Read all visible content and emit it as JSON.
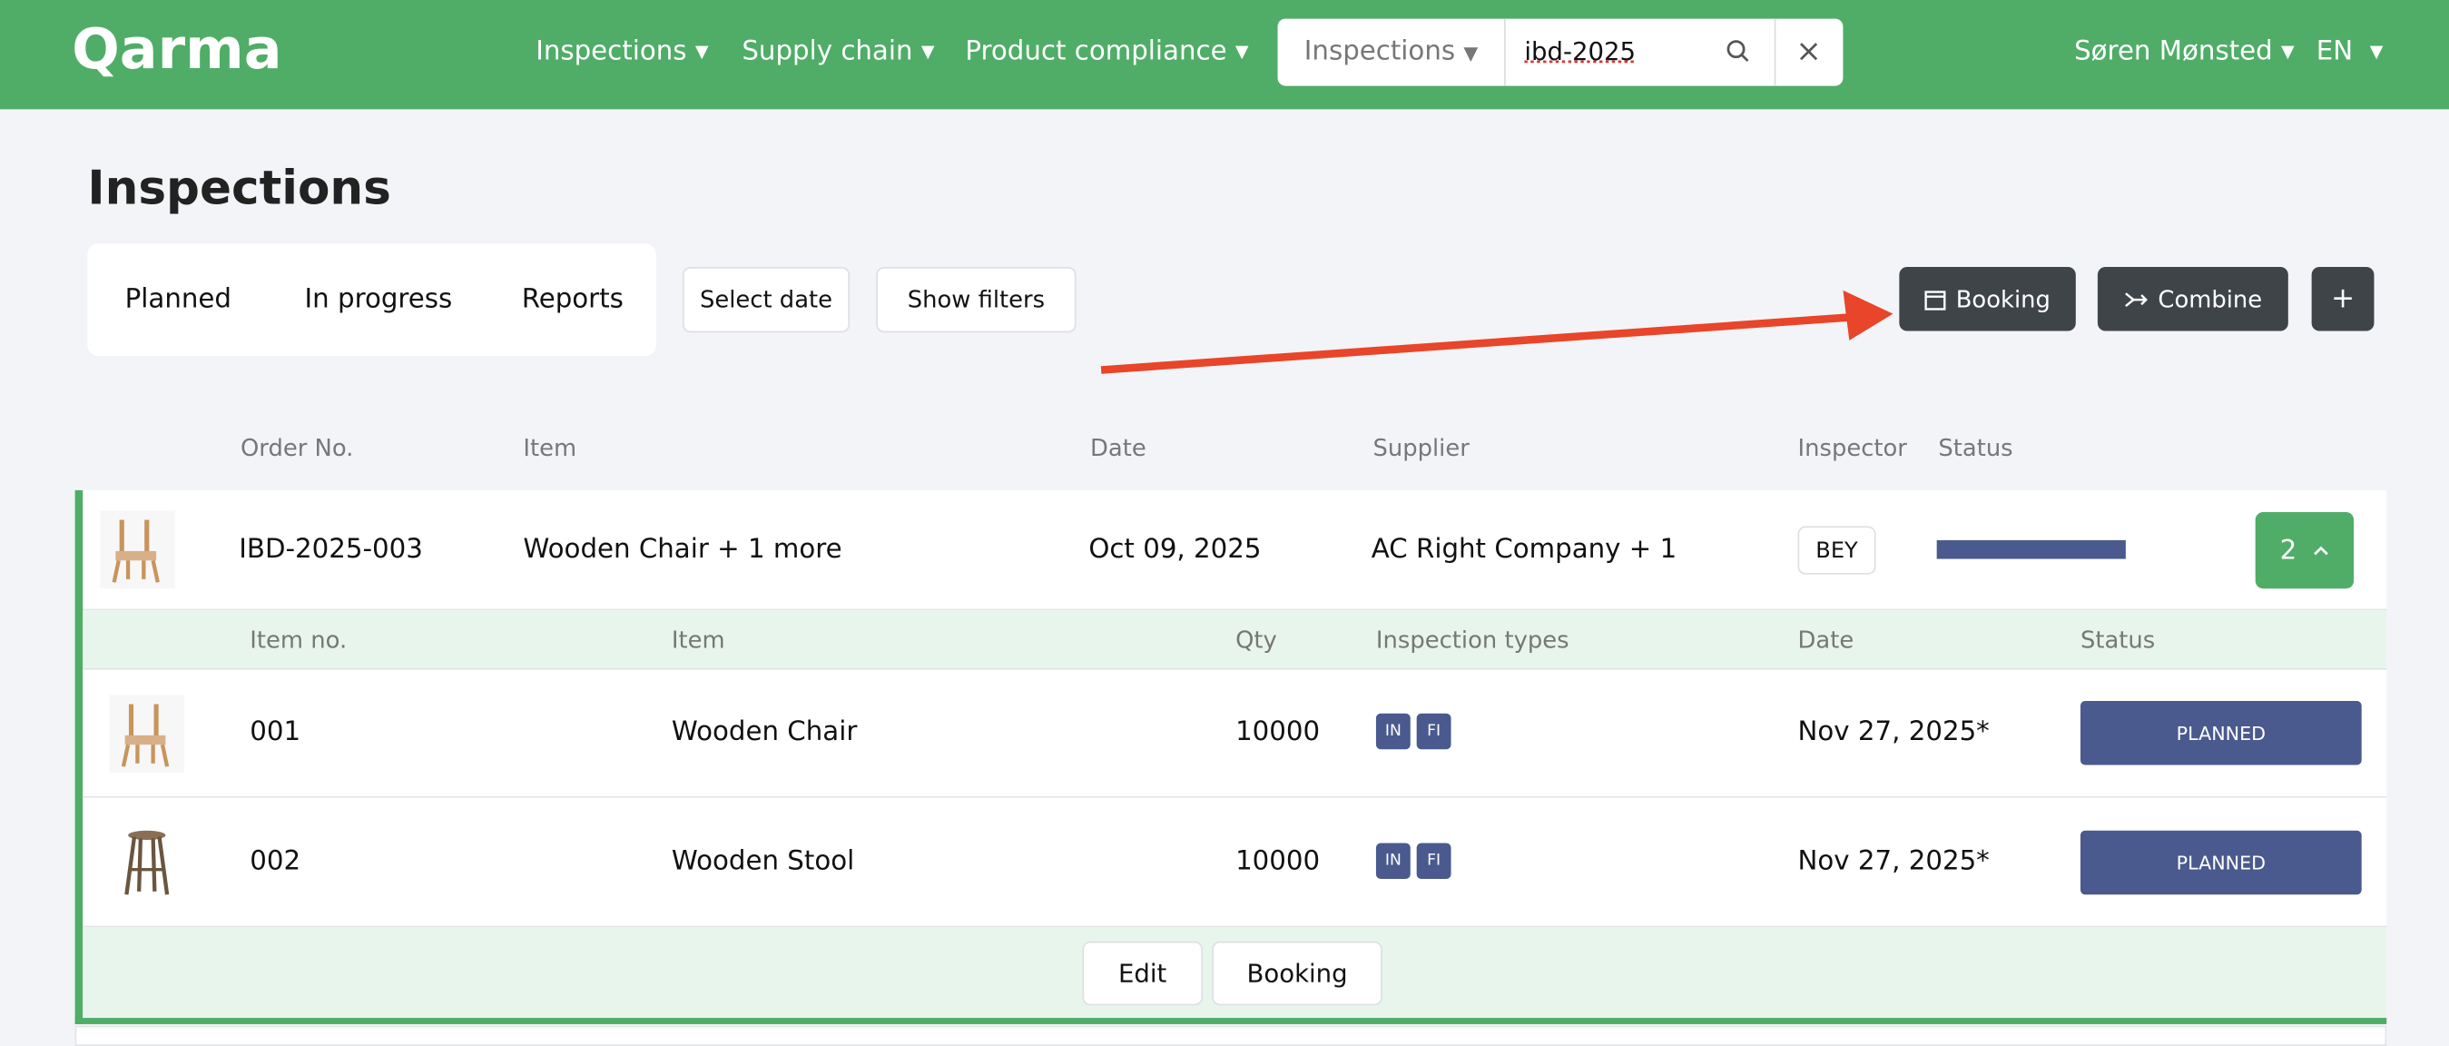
{
  "header": {
    "logo": "Qarma",
    "nav": [
      "Inspections",
      "Supply chain",
      "Product compliance"
    ],
    "search_scope": "Inspections",
    "search_query": "ibd-2025",
    "user": "Søren Mønsted",
    "language": "EN"
  },
  "page": {
    "title": "Inspections",
    "tabs": [
      "Planned",
      "In progress",
      "Reports"
    ],
    "filters": [
      "Select date",
      "Show filters"
    ],
    "actions": [
      "Booking",
      "Combine",
      "+"
    ]
  },
  "table": {
    "columns": [
      "Order No.",
      "Item",
      "Date",
      "Supplier",
      "Inspector",
      "Status"
    ],
    "rows": [
      {
        "order_no": "IBD-2025-003",
        "item": "Wooden Chair + 1 more",
        "date": "Oct 09, 2025",
        "supplier": "AC Right Company + 1",
        "inspector": "BEY",
        "count": 2
      }
    ]
  },
  "sub_table": {
    "columns": [
      "Item no.",
      "Item",
      "Qty",
      "Inspection types",
      "Date",
      "Status"
    ],
    "rows": [
      {
        "item_no": "001",
        "item": "Wooden Chair",
        "qty": 10000,
        "types": [
          "IN",
          "FI"
        ],
        "date": "Nov 27, 2025*",
        "status": "PLANNED"
      },
      {
        "item_no": "002",
        "item": "Wooden Stool",
        "qty": 10000,
        "types": [
          "IN",
          "FI"
        ],
        "date": "Nov 27, 2025*",
        "status": "PLANNED"
      }
    ],
    "actions": [
      "Edit",
      "Booking"
    ]
  }
}
